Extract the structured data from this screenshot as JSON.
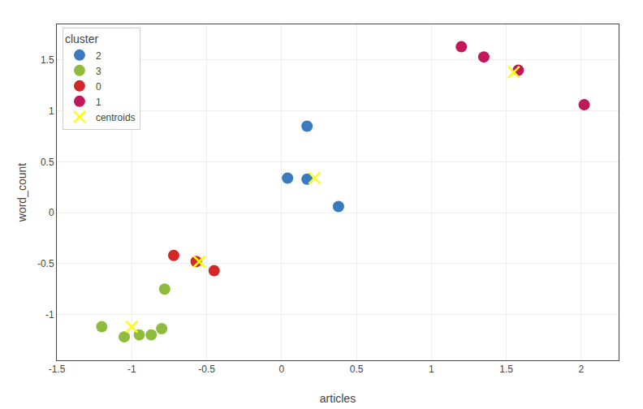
{
  "chart_data": {
    "type": "scatter",
    "xlabel": "articles",
    "ylabel": "word_count",
    "legend_title": "cluster",
    "legend": "upper left",
    "grid": true,
    "xlim": [
      -1.5,
      2.25
    ],
    "ylim": [
      -1.45,
      1.85
    ],
    "xticks": [
      -1.5,
      -1,
      -0.5,
      0,
      0.5,
      1,
      1.5,
      2
    ],
    "yticks": [
      -1,
      -0.5,
      0,
      0.5,
      1,
      1.5
    ],
    "series": [
      {
        "name": "2",
        "color": "#3a7abf",
        "marker": "circle",
        "x": [
          0.17,
          0.04,
          0.17,
          0.38
        ],
        "y": [
          0.85,
          0.34,
          0.33,
          0.06
        ]
      },
      {
        "name": "3",
        "color": "#8fbc3f",
        "marker": "circle",
        "x": [
          -1.2,
          -1.05,
          -0.95,
          -0.87,
          -0.8,
          -0.78
        ],
        "y": [
          -1.12,
          -1.22,
          -1.2,
          -1.2,
          -1.14,
          -0.75
        ]
      },
      {
        "name": "0",
        "color": "#d62728",
        "marker": "circle",
        "x": [
          -0.72,
          -0.45,
          -0.57
        ],
        "y": [
          -0.42,
          -0.57,
          -0.48
        ]
      },
      {
        "name": "1",
        "color": "#c2185b",
        "marker": "circle",
        "x": [
          1.2,
          1.35,
          1.58,
          2.02
        ],
        "y": [
          1.63,
          1.53,
          1.4,
          1.06
        ]
      },
      {
        "name": "centroids",
        "color": "yellow",
        "marker": "x",
        "x": [
          0.22,
          -1.0,
          -0.55,
          1.55
        ],
        "y": [
          0.34,
          -1.12,
          -0.48,
          1.38
        ]
      }
    ]
  }
}
